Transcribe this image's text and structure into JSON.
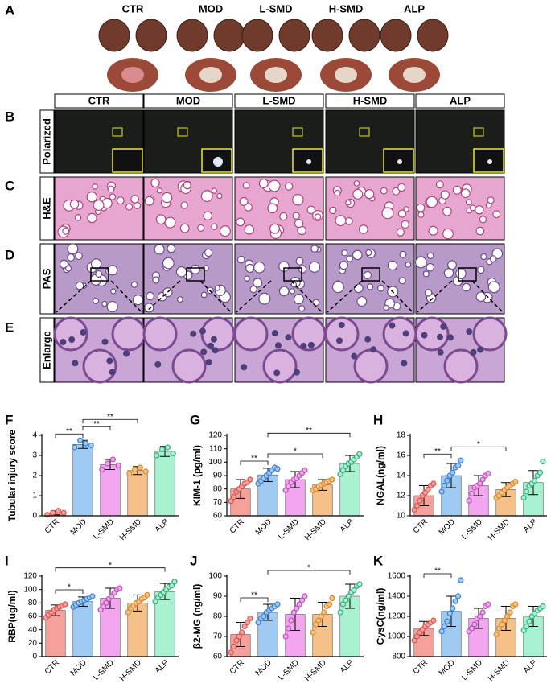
{
  "figure": {
    "panel_labels": [
      "A",
      "B",
      "C",
      "D",
      "E"
    ],
    "groups": [
      "CTR",
      "MOD",
      "L-SMD",
      "H-SMD",
      "ALP"
    ],
    "rows": [
      "Polarized",
      "H&E",
      "PAS",
      "Enlarge"
    ]
  },
  "chart_data": [
    {
      "type": "bar",
      "panel_label": "F",
      "y_label": "Tubular injury score",
      "categories": [
        "CTR",
        "MOD",
        "L-SMD",
        "H-SMD",
        "ALP"
      ],
      "colors": [
        "#f4a19b",
        "#9fcaf2",
        "#f2a6ef",
        "#f6c189",
        "#a8f2d2"
      ],
      "point_colors": [
        "#d9534f",
        "#3b7fd1",
        "#b954b4",
        "#d98a2b",
        "#3aaa7a"
      ],
      "values": [
        0.15,
        3.55,
        2.55,
        2.25,
        3.2
      ],
      "errors": [
        0.1,
        0.2,
        0.25,
        0.2,
        0.25
      ],
      "points": [
        [
          0.05,
          0.15,
          0.25,
          0.15
        ],
        [
          3.4,
          3.75,
          3.6,
          3.5
        ],
        [
          2.3,
          2.6,
          2.8,
          2.5
        ],
        [
          2.1,
          2.3,
          2.4,
          2.2
        ],
        [
          3.0,
          3.3,
          3.4,
          3.1
        ]
      ],
      "ylim": [
        0,
        4
      ],
      "yticks": [
        0,
        1,
        2,
        3,
        4
      ],
      "brackets": [
        {
          "from": "CTR",
          "to": "MOD",
          "label": "**"
        },
        {
          "from": "MOD",
          "to": "L-SMD",
          "label": "**"
        },
        {
          "from": "MOD",
          "to": "H-SMD",
          "label": "**"
        }
      ]
    },
    {
      "type": "bar",
      "panel_label": "G",
      "y_label": "KIM-1 (pg/ml)",
      "categories": [
        "CTR",
        "MOD",
        "L-SMD",
        "H-SMD",
        "ALP"
      ],
      "colors": [
        "#f4a19b",
        "#9fcaf2",
        "#f2a6ef",
        "#f6c189",
        "#a8f2d2"
      ],
      "point_colors": [
        "#d9534f",
        "#3b7fd1",
        "#b954b4",
        "#d98a2b",
        "#3aaa7a"
      ],
      "values": [
        80,
        90.5,
        87,
        83,
        99
      ],
      "errors": [
        7,
        5,
        6,
        4,
        6
      ],
      "points": [
        [
          71,
          74,
          78,
          80,
          82,
          84,
          85,
          87
        ],
        [
          84,
          86,
          88,
          90,
          92,
          94,
          96,
          95
        ],
        [
          79,
          82,
          85,
          87,
          88,
          90,
          92,
          94
        ],
        [
          79,
          80,
          82,
          83,
          84,
          85,
          86,
          87
        ],
        [
          91,
          94,
          97,
          99,
          100,
          102,
          104,
          106
        ]
      ],
      "ylim": [
        60,
        120
      ],
      "yticks": [
        60,
        70,
        80,
        90,
        100,
        110,
        120
      ],
      "brackets": [
        {
          "from": "CTR",
          "to": "MOD",
          "label": "**"
        },
        {
          "from": "MOD",
          "to": "H-SMD",
          "label": "*"
        },
        {
          "from": "MOD",
          "to": "ALP",
          "label": "**"
        }
      ]
    },
    {
      "type": "bar",
      "panel_label": "H",
      "y_label": "NGAL(ng/ml)",
      "categories": [
        "CTR",
        "MOD",
        "L-SMD",
        "H-SMD",
        "ALP"
      ],
      "colors": [
        "#f4a19b",
        "#9fcaf2",
        "#f2a6ef",
        "#f6c189",
        "#a8f2d2"
      ],
      "point_colors": [
        "#d9534f",
        "#3b7fd1",
        "#b954b4",
        "#d98a2b",
        "#3aaa7a"
      ],
      "values": [
        12,
        14,
        13,
        12.6,
        13.3
      ],
      "errors": [
        1,
        1.2,
        1,
        0.7,
        1.2
      ],
      "points": [
        [
          10.6,
          11,
          11.5,
          12,
          12.3,
          12.6,
          13,
          13.2
        ],
        [
          12.4,
          13,
          13.5,
          14,
          14.3,
          14.8,
          15,
          15.5
        ],
        [
          11.5,
          12.2,
          12.8,
          13,
          13.2,
          13.6,
          14,
          14.2
        ],
        [
          11.8,
          12,
          12.3,
          12.6,
          12.8,
          13,
          13.2,
          13.4
        ],
        [
          11.8,
          12.4,
          13,
          13.2,
          13.5,
          14,
          14.3,
          15.4
        ]
      ],
      "ylim": [
        10,
        18
      ],
      "yticks": [
        10,
        12,
        14,
        16,
        18
      ],
      "brackets": [
        {
          "from": "CTR",
          "to": "MOD",
          "label": "**"
        },
        {
          "from": "MOD",
          "to": "H-SMD",
          "label": "*"
        }
      ]
    },
    {
      "type": "bar",
      "panel_label": "I",
      "y_label": "RBP(ug/ml)",
      "categories": [
        "CTR",
        "MOD",
        "L-SMD",
        "H-SMD",
        "ALP"
      ],
      "colors": [
        "#f4a19b",
        "#9fcaf2",
        "#f2a6ef",
        "#f6c189",
        "#a8f2d2"
      ],
      "point_colors": [
        "#d9534f",
        "#3b7fd1",
        "#b954b4",
        "#d98a2b",
        "#3aaa7a"
      ],
      "values": [
        69,
        82,
        87,
        80,
        97
      ],
      "errors": [
        8,
        7,
        15,
        12,
        12
      ],
      "points": [
        [
          58,
          62,
          66,
          70,
          72,
          74,
          76,
          78
        ],
        [
          74,
          77,
          80,
          82,
          84,
          86,
          88,
          90
        ],
        [
          70,
          75,
          80,
          86,
          90,
          95,
          100,
          102
        ],
        [
          66,
          72,
          76,
          80,
          82,
          86,
          88,
          92
        ],
        [
          82,
          88,
          92,
          96,
          100,
          104,
          106,
          112
        ]
      ],
      "ylim": [
        0,
        120
      ],
      "yticks": [
        0,
        20,
        40,
        60,
        80,
        100,
        120
      ],
      "brackets": [
        {
          "from": "CTR",
          "to": "MOD",
          "label": "*"
        },
        {
          "from": "CTR",
          "to": "ALP",
          "label": "*"
        }
      ]
    },
    {
      "type": "bar",
      "panel_label": "J",
      "y_label": "β2-MG (ng/ml)",
      "categories": [
        "CTR",
        "MOD",
        "L-SMD",
        "H-SMD",
        "ALP"
      ],
      "colors": [
        "#f4a19b",
        "#9fcaf2",
        "#f2a6ef",
        "#f6c189",
        "#a8f2d2"
      ],
      "point_colors": [
        "#d9534f",
        "#3b7fd1",
        "#b954b4",
        "#d98a2b",
        "#3aaa7a"
      ],
      "values": [
        71,
        82,
        81,
        81,
        90
      ],
      "errors": [
        6,
        4,
        8,
        6,
        6
      ],
      "points": [
        [
          62,
          65,
          68,
          70,
          72,
          75,
          77,
          79
        ],
        [
          77,
          79,
          80,
          82,
          83,
          84,
          85,
          86
        ],
        [
          70,
          74,
          78,
          82,
          84,
          86,
          88,
          90
        ],
        [
          72,
          76,
          78,
          80,
          82,
          85,
          86,
          89
        ],
        [
          82,
          86,
          88,
          90,
          92,
          93,
          95,
          96
        ]
      ],
      "ylim": [
        60,
        100
      ],
      "yticks": [
        60,
        70,
        80,
        90,
        100
      ],
      "brackets": [
        {
          "from": "CTR",
          "to": "MOD",
          "label": "**"
        },
        {
          "from": "MOD",
          "to": "ALP",
          "label": "*"
        }
      ]
    },
    {
      "type": "bar",
      "panel_label": "K",
      "y_label": "CysC(ng/ml)",
      "categories": [
        "CTR",
        "MOD",
        "L-SMD",
        "H-SMD",
        "ALP"
      ],
      "colors": [
        "#f4a19b",
        "#9fcaf2",
        "#f2a6ef",
        "#f6c189",
        "#a8f2d2"
      ],
      "point_colors": [
        "#d9534f",
        "#3b7fd1",
        "#b954b4",
        "#d98a2b",
        "#3aaa7a"
      ],
      "values": [
        1080,
        1250,
        1180,
        1180,
        1200
      ],
      "errors": [
        70,
        150,
        100,
        120,
        100
      ],
      "points": [
        [
          960,
          1000,
          1040,
          1070,
          1100,
          1120,
          1140,
          1160
        ],
        [
          1050,
          1100,
          1150,
          1230,
          1280,
          1350,
          1400,
          1560
        ],
        [
          1050,
          1080,
          1120,
          1180,
          1200,
          1240,
          1300,
          1320
        ],
        [
          1020,
          1080,
          1120,
          1160,
          1200,
          1240,
          1300,
          1320
        ],
        [
          1060,
          1100,
          1150,
          1200,
          1230,
          1260,
          1280,
          1300
        ]
      ],
      "ylim": [
        800,
        1600
      ],
      "yticks": [
        800,
        1000,
        1200,
        1400,
        1600
      ],
      "brackets": [
        {
          "from": "CTR",
          "to": "MOD",
          "label": "**"
        }
      ]
    }
  ]
}
